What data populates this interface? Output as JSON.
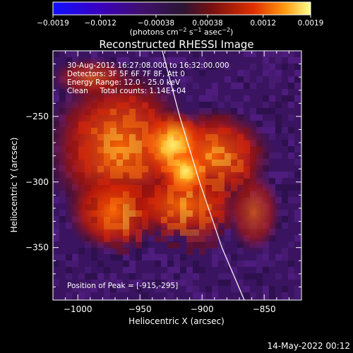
{
  "colorbar": {
    "ticks": [
      "-0.0019",
      "-0.0012",
      "-0.00038",
      "0.00038",
      "0.0012",
      "0.0019"
    ],
    "tick_values": [
      -0.0019,
      -0.0012,
      -0.00038,
      0.00038,
      0.0012,
      0.0019
    ],
    "range": [
      -0.0019,
      0.0019
    ],
    "colors": [
      "#1010ff",
      "#3a00c0",
      "#40106a",
      "#2a1535",
      "#7a1010",
      "#e03000",
      "#ff9a10",
      "#ffff90"
    ]
  },
  "chart_data": {
    "type": "heatmap",
    "title": "Reconstructed RHESSI Image",
    "xlabel": "Heliocentric X (arcsec)",
    "ylabel": "Heliocentric Y (arcsec)",
    "xlim": [
      -1020,
      -820
    ],
    "ylim": [
      -390,
      -200
    ],
    "x_ticks": [
      -1000,
      -950,
      -900,
      -850
    ],
    "y_ticks": [
      -250,
      -300,
      -350
    ],
    "peak": [
      -915,
      -295
    ],
    "limb_curve": [
      [
        -932,
        -200
      ],
      [
        -918,
        -250
      ],
      [
        -902,
        -300
      ],
      [
        -884,
        -350
      ],
      [
        -866,
        -390
      ]
    ],
    "background_color": "#3a1460",
    "source_color": "#ff5a00",
    "peak_color": "#ffff80"
  },
  "annotations": {
    "time_range": "30-Aug-2012 16:27:08.000 to 16:32:00.000",
    "detectors": "Detectors: 3F 5F 6F 7F 8F, Att 0",
    "energy": "Energy Range: 12.0 - 25.0 keV",
    "clean": "Clean     Total counts: 1.14E+04",
    "peak_label": "Position of Peak = [-915,-295]"
  },
  "footer": {
    "timestamp": "14-May-2022 00:12"
  }
}
